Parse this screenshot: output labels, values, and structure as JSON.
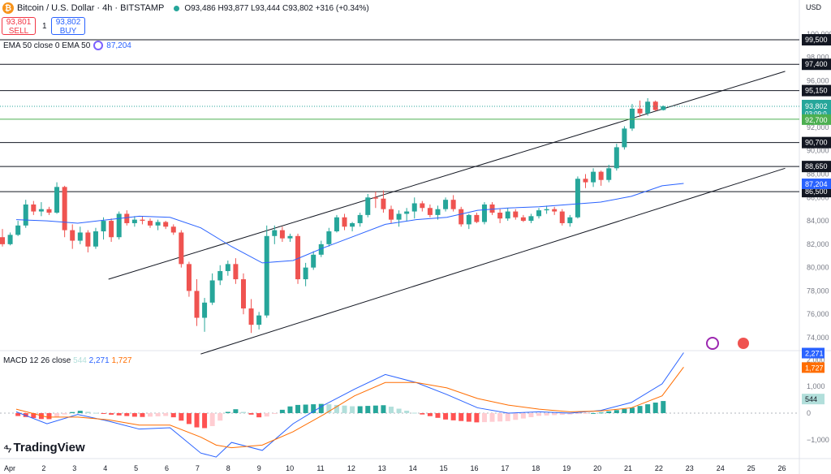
{
  "header": {
    "symbol_title": "Bitcoin / U.S. Dollar · 4h · BITSTAMP",
    "ohlc": "O93,486 H93,877 L93,444 C93,802 +316 (+0.34%)",
    "sell_price": "93,801",
    "sell_label": "SELL",
    "spread": "1",
    "buy_price": "93,802",
    "buy_label": "BUY"
  },
  "indicators": {
    "ema_label": "EMA 50 close 0 EMA 50",
    "ema_value": "87,204",
    "macd_label": "MACD 12 26 close",
    "macd_hist": "544",
    "macd_line": "2,271",
    "macd_signal": "1,727"
  },
  "axis": {
    "currency": "USD",
    "price_ticks": [
      "74,000",
      "76,000",
      "78,000",
      "80,000",
      "82,000",
      "84,000",
      "86,000",
      "88,000",
      "90,000",
      "92,000",
      "94,000",
      "96,000",
      "98,000",
      "100,000"
    ],
    "macd_ticks": [
      "−1,000",
      "0",
      "1,000",
      "2,000"
    ],
    "x_ticks": [
      "Apr",
      "2",
      "3",
      "4",
      "5",
      "6",
      "7",
      "8",
      "9",
      "10",
      "11",
      "12",
      "13",
      "14",
      "15",
      "16",
      "17",
      "18",
      "19",
      "20",
      "21",
      "22",
      "23",
      "24",
      "25",
      "26"
    ]
  },
  "levels": [
    {
      "label": "99,500",
      "value": 99500
    },
    {
      "label": "97,400",
      "value": 97400
    },
    {
      "label": "95,150",
      "value": 95150
    },
    {
      "label": "90,700",
      "value": 90700
    },
    {
      "label": "88,650",
      "value": 88650
    },
    {
      "label": "86,500",
      "value": 86500
    }
  ],
  "price_tags": {
    "current": "93,802",
    "countdown": "03:09:0",
    "green_level": "92,700",
    "ema": "87,204"
  },
  "brand": "TradingView",
  "colors": {
    "up": "#26a69a",
    "down": "#ef5350",
    "ema": "#2962ff",
    "macd": "#2962ff",
    "signal": "#ff6d00",
    "line": "#131722"
  },
  "chart_data": {
    "type": "candlestick",
    "timeframe": "4h",
    "x_range": [
      "Apr 1",
      "Apr 26"
    ],
    "ylim": [
      73000,
      101000
    ],
    "candles": [
      [
        82600,
        83300,
        81800,
        82000
      ],
      [
        82000,
        83000,
        81900,
        82800
      ],
      [
        82800,
        84000,
        82700,
        83600
      ],
      [
        83600,
        85800,
        83400,
        85400
      ],
      [
        85400,
        85700,
        84500,
        84800
      ],
      [
        84800,
        85600,
        84400,
        85000
      ],
      [
        85000,
        85200,
        84500,
        84700
      ],
      [
        84700,
        87300,
        84600,
        86900
      ],
      [
        86900,
        87000,
        82600,
        83200
      ],
      [
        83200,
        83700,
        81600,
        82300
      ],
      [
        82300,
        83500,
        82000,
        83000
      ],
      [
        83000,
        83200,
        81300,
        81800
      ],
      [
        81800,
        83400,
        81600,
        83100
      ],
      [
        83100,
        84300,
        82400,
        84000
      ],
      [
        84000,
        84200,
        82200,
        82600
      ],
      [
        82600,
        84800,
        82400,
        84600
      ],
      [
        84600,
        84900,
        83600,
        83800
      ],
      [
        83800,
        84400,
        83500,
        84100
      ],
      [
        84100,
        84400,
        83700,
        84000
      ],
      [
        84000,
        84200,
        83400,
        83600
      ],
      [
        83600,
        84100,
        83200,
        83900
      ],
      [
        83900,
        84000,
        83300,
        83500
      ],
      [
        83500,
        83700,
        82800,
        83000
      ],
      [
        83000,
        83200,
        80000,
        80300
      ],
      [
        80300,
        80500,
        77500,
        78000
      ],
      [
        78000,
        79000,
        75000,
        75700
      ],
      [
        75700,
        77400,
        74500,
        77000
      ],
      [
        77000,
        79500,
        76800,
        78900
      ],
      [
        78900,
        80200,
        78500,
        79700
      ],
      [
        79700,
        80600,
        79300,
        80300
      ],
      [
        80300,
        80800,
        78600,
        79000
      ],
      [
        79000,
        79500,
        76000,
        76500
      ],
      [
        76500,
        77300,
        74400,
        75100
      ],
      [
        75100,
        76200,
        74700,
        75900
      ],
      [
        75900,
        83600,
        75700,
        82700
      ],
      [
        82700,
        83600,
        82000,
        83200
      ],
      [
        83200,
        83500,
        82200,
        82500
      ],
      [
        82500,
        82900,
        82200,
        82700
      ],
      [
        82700,
        82900,
        78600,
        79000
      ],
      [
        79000,
        80400,
        78400,
        80000
      ],
      [
        80000,
        81400,
        79800,
        81100
      ],
      [
        81100,
        82300,
        80900,
        82000
      ],
      [
        82000,
        83400,
        81800,
        83100
      ],
      [
        83100,
        84500,
        83000,
        84300
      ],
      [
        84300,
        84600,
        83200,
        83500
      ],
      [
        83500,
        83900,
        83100,
        83800
      ],
      [
        83800,
        84700,
        83500,
        84500
      ],
      [
        84500,
        86300,
        84300,
        86000
      ],
      [
        86000,
        86500,
        85100,
        85900
      ],
      [
        85900,
        86600,
        84700,
        85000
      ],
      [
        85000,
        85300,
        83800,
        84100
      ],
      [
        84100,
        84900,
        83500,
        84600
      ],
      [
        84600,
        85100,
        84000,
        84800
      ],
      [
        84800,
        86000,
        84200,
        85500
      ],
      [
        85500,
        85700,
        84800,
        85100
      ],
      [
        85100,
        85400,
        84300,
        84500
      ],
      [
        84500,
        85300,
        84100,
        85000
      ],
      [
        85000,
        86000,
        84800,
        85800
      ],
      [
        85800,
        86200,
        84800,
        85000
      ],
      [
        85000,
        85200,
        83500,
        83700
      ],
      [
        83700,
        84600,
        83300,
        84500
      ],
      [
        84500,
        84700,
        83800,
        83900
      ],
      [
        83900,
        85600,
        83700,
        85400
      ],
      [
        85400,
        85600,
        84500,
        84700
      ],
      [
        84700,
        85000,
        83800,
        84200
      ],
      [
        84200,
        85100,
        84000,
        84800
      ],
      [
        84800,
        85000,
        84100,
        84300
      ],
      [
        84300,
        84500,
        83900,
        84000
      ],
      [
        84000,
        84600,
        83800,
        84400
      ],
      [
        84400,
        85100,
        84200,
        84900
      ],
      [
        84900,
        85300,
        84600,
        85000
      ],
      [
        85000,
        85200,
        84500,
        84800
      ],
      [
        84800,
        85000,
        83600,
        83800
      ],
      [
        83800,
        84500,
        83500,
        84300
      ],
      [
        84300,
        87800,
        84200,
        87600
      ],
      [
        87600,
        88000,
        86800,
        87300
      ],
      [
        87300,
        88500,
        86900,
        88200
      ],
      [
        88200,
        88300,
        87000,
        87500
      ],
      [
        87500,
        88800,
        87300,
        88500
      ],
      [
        88500,
        90600,
        88300,
        90300
      ],
      [
        90300,
        92100,
        90100,
        91900
      ],
      [
        91900,
        94000,
        91700,
        93600
      ],
      [
        93600,
        94300,
        92900,
        93200
      ],
      [
        93200,
        94500,
        93000,
        94200
      ],
      [
        94200,
        94300,
        93400,
        93486
      ],
      [
        93486,
        93877,
        93444,
        93802
      ]
    ],
    "ema50": [
      [
        1,
        84100
      ],
      [
        2,
        84000
      ],
      [
        3,
        83800
      ],
      [
        5,
        84400
      ],
      [
        6,
        84300
      ],
      [
        7,
        83400
      ],
      [
        8,
        81800
      ],
      [
        9,
        80400
      ],
      [
        10,
        80600
      ],
      [
        11,
        81700
      ],
      [
        12,
        82700
      ],
      [
        13,
        83700
      ],
      [
        14,
        84100
      ],
      [
        15,
        84300
      ],
      [
        16,
        84900
      ],
      [
        17,
        85100
      ],
      [
        18,
        85200
      ],
      [
        19,
        85400
      ],
      [
        20,
        85600
      ],
      [
        21,
        86100
      ],
      [
        22,
        87000
      ],
      [
        22.7,
        87204
      ]
    ],
    "channel": {
      "upper": [
        [
          4,
          79000
        ],
        [
          26,
          96800
        ]
      ],
      "lower": [
        [
          7,
          72600
        ],
        [
          26,
          88500
        ]
      ]
    },
    "macd": {
      "line": [
        [
          1,
          50
        ],
        [
          2,
          -400
        ],
        [
          3,
          -50
        ],
        [
          4,
          -300
        ],
        [
          5,
          -600
        ],
        [
          6,
          -550
        ],
        [
          7,
          -1500
        ],
        [
          7.5,
          -1650
        ],
        [
          8,
          -1100
        ],
        [
          9,
          -1400
        ],
        [
          10,
          -400
        ],
        [
          11,
          300
        ],
        [
          12,
          900
        ],
        [
          13,
          1450
        ],
        [
          14,
          1150
        ],
        [
          15,
          700
        ],
        [
          16,
          200
        ],
        [
          17,
          0
        ],
        [
          18,
          50
        ],
        [
          19,
          0
        ],
        [
          20,
          100
        ],
        [
          21,
          400
        ],
        [
          22,
          1100
        ],
        [
          22.7,
          2271
        ]
      ],
      "signal": [
        [
          1,
          150
        ],
        [
          2,
          -150
        ],
        [
          3,
          -150
        ],
        [
          4,
          -250
        ],
        [
          5,
          -450
        ],
        [
          6,
          -450
        ],
        [
          7,
          -900
        ],
        [
          7.5,
          -1200
        ],
        [
          8,
          -1300
        ],
        [
          9,
          -1200
        ],
        [
          10,
          -700
        ],
        [
          11,
          -50
        ],
        [
          12,
          650
        ],
        [
          13,
          1150
        ],
        [
          14,
          1150
        ],
        [
          15,
          950
        ],
        [
          16,
          550
        ],
        [
          17,
          300
        ],
        [
          18,
          150
        ],
        [
          19,
          50
        ],
        [
          20,
          80
        ],
        [
          21,
          200
        ],
        [
          22,
          650
        ],
        [
          22.7,
          1727
        ]
      ],
      "histogram_last": 544
    }
  }
}
